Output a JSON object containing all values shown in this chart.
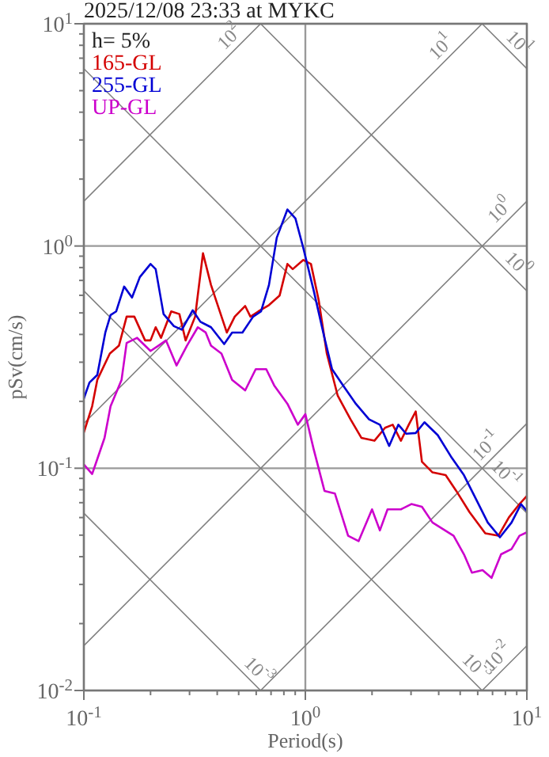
{
  "chart_data": {
    "type": "line",
    "title": "2025/12/08 23:33 at MYKC",
    "xlabel": "Period(s)",
    "ylabel": "pSv(cm/s)",
    "log": "xy",
    "grid": true,
    "legend": "top left",
    "marker": "none",
    "line_style": "solid",
    "xlim": [
      0.1,
      10
    ],
    "ylim": [
      0.01,
      10
    ],
    "xticks": [
      {
        "value": 0.1,
        "label": "10$^{-1}$"
      },
      {
        "value": 0.2,
        "label": null
      },
      {
        "value": 0.3,
        "label": null
      },
      {
        "value": 0.4,
        "label": null
      },
      {
        "value": 0.5,
        "label": null
      },
      {
        "value": 0.6,
        "label": null
      },
      {
        "value": 0.7,
        "label": null
      },
      {
        "value": 0.8,
        "label": null
      },
      {
        "value": 0.9,
        "label": null
      },
      {
        "value": 1,
        "label": "10$^{0}$"
      },
      {
        "value": 2,
        "label": null
      },
      {
        "value": 3,
        "label": null
      },
      {
        "value": 4,
        "label": null
      },
      {
        "value": 5,
        "label": null
      },
      {
        "value": 6,
        "label": null
      },
      {
        "value": 7,
        "label": null
      },
      {
        "value": 8,
        "label": null
      },
      {
        "value": 9,
        "label": null
      },
      {
        "value": 10,
        "label": "10$^{1}$"
      }
    ],
    "yticks": [
      {
        "value": 0.01,
        "label": "10$^{-2}$"
      },
      {
        "value": 0.02,
        "label": null
      },
      {
        "value": 0.03,
        "label": null
      },
      {
        "value": 0.04,
        "label": null
      },
      {
        "value": 0.05,
        "label": null
      },
      {
        "value": 0.06,
        "label": null
      },
      {
        "value": 0.07,
        "label": null
      },
      {
        "value": 0.08,
        "label": null
      },
      {
        "value": 0.09,
        "label": null
      },
      {
        "value": 0.1,
        "label": "10$^{-1}$"
      },
      {
        "value": 0.2,
        "label": null
      },
      {
        "value": 0.3,
        "label": null
      },
      {
        "value": 0.4,
        "label": null
      },
      {
        "value": 0.5,
        "label": null
      },
      {
        "value": 0.6,
        "label": null
      },
      {
        "value": 0.7,
        "label": null
      },
      {
        "value": 0.8,
        "label": null
      },
      {
        "value": 0.9,
        "label": null
      },
      {
        "value": 1,
        "label": "10$^{0}$"
      },
      {
        "value": 2,
        "label": null
      },
      {
        "value": 3,
        "label": null
      },
      {
        "value": 4,
        "label": null
      },
      {
        "value": 5,
        "label": null
      },
      {
        "value": 6,
        "label": null
      },
      {
        "value": 7,
        "label": null
      },
      {
        "value": 8,
        "label": null
      },
      {
        "value": 9,
        "label": null
      },
      {
        "value": 10,
        "label": "10$^{1}$"
      }
    ],
    "series": [
      {
        "name": "165-GL",
        "color": "#d40000",
        "x": [
          0.1,
          0.109,
          0.115,
          0.131,
          0.144,
          0.156,
          0.169,
          0.189,
          0.2,
          0.211,
          0.223,
          0.248,
          0.27,
          0.288,
          0.318,
          0.345,
          0.375,
          0.396,
          0.442,
          0.48,
          0.535,
          0.565,
          0.614,
          0.685,
          0.765,
          0.83,
          0.877,
          0.979,
          1.06,
          1.15,
          1.25,
          1.4,
          1.6,
          1.79,
          2.05,
          2.29,
          2.48,
          2.7,
          2.93,
          3.15,
          3.36,
          3.75,
          4.3,
          4.8,
          5.51,
          6.49,
          7.44,
          8.3,
          9.26,
          10
        ],
        "values": [
          0.145,
          0.19,
          0.25,
          0.328,
          0.356,
          0.481,
          0.481,
          0.376,
          0.376,
          0.431,
          0.386,
          0.508,
          0.494,
          0.376,
          0.481,
          0.927,
          0.668,
          0.567,
          0.408,
          0.481,
          0.537,
          0.481,
          0.508,
          0.542,
          0.598,
          0.83,
          0.787,
          0.865,
          0.83,
          0.567,
          0.328,
          0.212,
          0.166,
          0.137,
          0.133,
          0.152,
          0.157,
          0.133,
          0.157,
          0.18,
          0.107,
          0.0958,
          0.0931,
          0.0791,
          0.0635,
          0.051,
          0.0497,
          0.0601,
          0.069,
          0.075
        ]
      },
      {
        "name": "255-GL",
        "color": "#0000d4",
        "x": [
          0.1,
          0.106,
          0.115,
          0.125,
          0.132,
          0.14,
          0.152,
          0.165,
          0.179,
          0.2,
          0.211,
          0.229,
          0.255,
          0.277,
          0.31,
          0.336,
          0.375,
          0.43,
          0.467,
          0.52,
          0.581,
          0.631,
          0.685,
          0.743,
          0.83,
          0.902,
          0.979,
          1.09,
          1.22,
          1.32,
          1.48,
          1.69,
          1.94,
          2.17,
          2.39,
          2.63,
          2.85,
          3.15,
          3.45,
          3.96,
          4.54,
          5.2,
          5.97,
          6.66,
          7.56,
          8.53,
          9.41,
          10
        ],
        "values": [
          0.206,
          0.243,
          0.263,
          0.408,
          0.489,
          0.508,
          0.657,
          0.586,
          0.725,
          0.83,
          0.787,
          0.494,
          0.436,
          0.42,
          0.514,
          0.456,
          0.431,
          0.362,
          0.408,
          0.408,
          0.481,
          0.508,
          0.668,
          1.09,
          1.46,
          1.33,
          0.979,
          0.632,
          0.386,
          0.279,
          0.236,
          0.195,
          0.166,
          0.157,
          0.126,
          0.157,
          0.143,
          0.144,
          0.161,
          0.141,
          0.113,
          0.0931,
          0.0708,
          0.057,
          0.0489,
          0.057,
          0.069,
          0.0642
        ]
      },
      {
        "name": "UP-GL",
        "color": "#cc00cc",
        "x": [
          0.1,
          0.109,
          0.115,
          0.124,
          0.132,
          0.148,
          0.156,
          0.174,
          0.2,
          0.217,
          0.235,
          0.262,
          0.292,
          0.327,
          0.355,
          0.375,
          0.418,
          0.467,
          0.535,
          0.597,
          0.666,
          0.723,
          0.83,
          0.925,
          1.0,
          1.09,
          1.22,
          1.36,
          1.56,
          1.74,
          2.0,
          2.17,
          2.35,
          2.7,
          3.01,
          3.36,
          3.75,
          4.67,
          5.2,
          5.65,
          6.31,
          6.93,
          7.65,
          8.53,
          9.26,
          10
        ],
        "values": [
          0.104,
          0.0942,
          0.11,
          0.137,
          0.19,
          0.25,
          0.366,
          0.386,
          0.337,
          0.356,
          0.376,
          0.29,
          0.356,
          0.431,
          0.408,
          0.356,
          0.328,
          0.25,
          0.224,
          0.279,
          0.279,
          0.236,
          0.195,
          0.157,
          0.175,
          0.122,
          0.0791,
          0.0769,
          0.0497,
          0.047,
          0.0653,
          0.0525,
          0.0653,
          0.0653,
          0.069,
          0.0671,
          0.057,
          0.0497,
          0.041,
          0.0339,
          0.0348,
          0.0321,
          0.041,
          0.0433,
          0.0497,
          0.0515
        ]
      },
      {
        "color": "#808080",
        "x": [
          0.1,
          0.628
        ],
        "values": [
          1.59,
          10
        ]
      },
      {
        "color": "#808080",
        "x": [
          0.1,
          6.28
        ],
        "values": [
          0.159,
          10
        ]
      },
      {
        "color": "#808080",
        "x": [
          0.1,
          10
        ],
        "values": [
          0.0159,
          1.59
        ]
      },
      {
        "color": "#808080",
        "x": [
          0.628,
          10
        ],
        "values": [
          0.01,
          0.159
        ]
      },
      {
        "color": "#808080",
        "x": [
          6.28,
          10
        ],
        "values": [
          0.01,
          0.0159
        ]
      },
      {
        "color": "#808080",
        "x": [
          0.628,
          10
        ],
        "values": [
          10,
          0.628
        ]
      },
      {
        "color": "#808080",
        "x": [
          6.28,
          10
        ],
        "values": [
          10,
          6.28
        ]
      },
      {
        "color": "#808080",
        "x": [
          0.1,
          10
        ],
        "values": [
          6.28,
          0.0628
        ]
      },
      {
        "color": "#808080",
        "x": [
          0.1,
          6.28
        ],
        "values": [
          0.628,
          0.01
        ]
      },
      {
        "color": "#808080",
        "x": [
          0.1,
          0.628
        ],
        "values": [
          0.0628,
          0.01
        ]
      }
    ],
    "annotations": [
      "h= 5%",
      {
        "text": "10$^{2}$",
        "x": 0.5,
        "y": 7.96
      },
      {
        "text": "10$^{1}$",
        "x": 4.5,
        "y": 7.16
      },
      {
        "text": "10$^{1}$",
        "x": 8.4,
        "y": 7.48
      },
      {
        "text": "10$^{0}$",
        "x": 8.3,
        "y": 1.32
      },
      {
        "text": "10$^{0}$",
        "x": 8.3,
        "y": 0.757
      },
      {
        "text": "10$^{-1}$",
        "x": 7.2,
        "y": 0.1145
      },
      {
        "text": "10$^{-1}$",
        "x": 7.3,
        "y": 0.086
      },
      {
        "text": "10$^{-3}$",
        "x": 0.56,
        "y": 0.0112
      },
      {
        "text": "10$^{-3}$",
        "x": 5.4,
        "y": 0.01163
      },
      {
        "text": "10$^{-2}$",
        "x": 8.1,
        "y": 0.01288
      }
    ]
  }
}
